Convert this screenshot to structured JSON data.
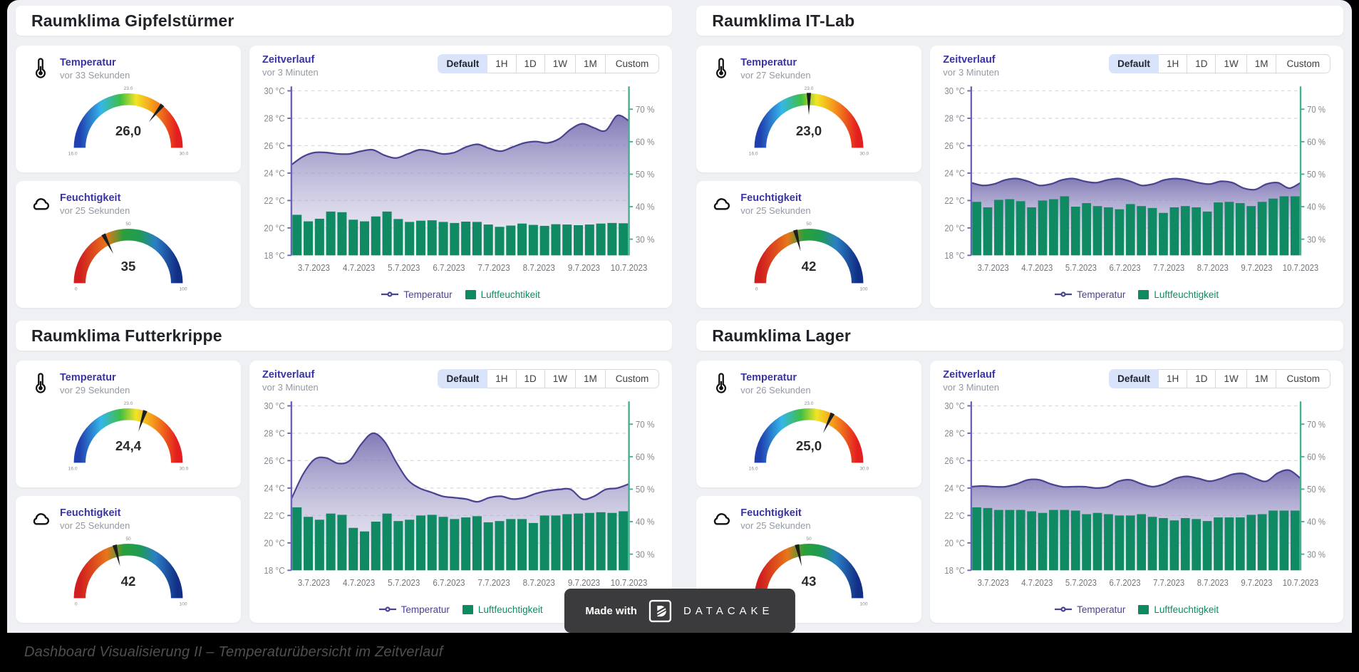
{
  "page": {
    "caption": "Dashboard Visualisierung II – Temperaturübersicht im Zeitverlauf",
    "badge": {
      "made_with": "Made with",
      "brand": "DATACAKE"
    }
  },
  "shared": {
    "range_buttons": [
      "Default",
      "1H",
      "1D",
      "1W",
      "1M",
      "Custom"
    ],
    "active_range": "Default",
    "x_labels": [
      "3.7.2023",
      "4.7.2023",
      "5.7.2023",
      "6.7.2023",
      "7.7.2023",
      "8.7.2023",
      "9.7.2023",
      "10.7.2023"
    ],
    "y_left_labels": [
      "30 °C",
      "28 °C",
      "26 °C",
      "24 °C",
      "22 °C",
      "20 °C",
      "18 °C"
    ],
    "y_right_labels": [
      "70 %",
      "60 %",
      "50 %",
      "40 %",
      "30 %"
    ],
    "temp_axis_range": [
      18,
      30
    ],
    "humidity_axis_range": [
      30,
      70
    ]
  },
  "colors": {
    "accent_purple": "#3a34a3",
    "line_purple": "#4a4391",
    "axis_purple": "#6a63b8",
    "bar_green": "#0f8a63",
    "axis_green": "#44b092",
    "grid_gray": "#d8d8dd",
    "axis_text": "#85898f",
    "active_button_bg": "#d9e3f9",
    "badge_bg": "#3b3b3d",
    "page_bg": "#eef0f3"
  },
  "panels": [
    {
      "title": "Raumklima Gipfelstürmer",
      "temperature": {
        "label": "Temperatur",
        "updated": "vor 33 Sekunden",
        "display": "26,0",
        "value": 26.0,
        "min": 16,
        "max": 30,
        "min_label": "16.0",
        "max_label": "30.0",
        "top_label": "23.0"
      },
      "humidity": {
        "label": "Feuchtigkeit",
        "updated": "vor 25 Sekunden",
        "display": "35",
        "value": 35,
        "min": 0,
        "max": 100,
        "min_label": "0",
        "max_label": "100",
        "top_label": "50"
      },
      "chart": {
        "title": "Zeitverlauf",
        "updated": "vor 3 Minuten",
        "type": "line+bar",
        "series": [
          {
            "name": "Temperatur",
            "type": "line",
            "unit": "°C",
            "values": [
              24.6,
              25.2,
              25.5,
              25.5,
              25.4,
              25.4,
              25.6,
              25.7,
              25.3,
              25.1,
              25.4,
              25.7,
              25.6,
              25.4,
              25.5,
              25.9,
              26.1,
              25.8,
              25.6,
              25.9,
              26.2,
              26.3,
              26.2,
              26.5,
              27.2,
              27.6,
              27.3,
              27.1,
              28.2,
              27.8
            ]
          },
          {
            "name": "Luftfeuchtikeit",
            "type": "bar",
            "unit": "%",
            "values": [
              37.5,
              35.5,
              36.3,
              38.5,
              38.3,
              36,
              35.5,
              37,
              38.5,
              36.2,
              35.3,
              35.7,
              35.8,
              35.3,
              35,
              35.4,
              35.3,
              34.5,
              33.8,
              34.2,
              34.8,
              34.4,
              34.1,
              34.6,
              34.5,
              34.3,
              34.5,
              34.8,
              35,
              34.9
            ]
          }
        ]
      }
    },
    {
      "title": "Raumklima IT-Lab",
      "temperature": {
        "label": "Temperatur",
        "updated": "vor 27 Sekunden",
        "display": "23,0",
        "value": 23.0,
        "min": 16,
        "max": 30,
        "min_label": "16.0",
        "max_label": "30.0",
        "top_label": "23.0"
      },
      "humidity": {
        "label": "Feuchtigkeit",
        "updated": "vor 25 Sekunden",
        "display": "42",
        "value": 42,
        "min": 0,
        "max": 100,
        "min_label": "0",
        "max_label": "100",
        "top_label": "50"
      },
      "chart": {
        "title": "Zeitverlauf",
        "updated": "vor 3 Minuten",
        "type": "line+bar",
        "series": [
          {
            "name": "Temperatur",
            "type": "line",
            "unit": "°C",
            "values": [
              23.3,
              23.1,
              23.2,
              23.5,
              23.6,
              23.4,
              23.1,
              23.2,
              23.5,
              23.6,
              23.4,
              23.3,
              23.5,
              23.6,
              23.4,
              23.1,
              23.2,
              23.5,
              23.6,
              23.5,
              23.3,
              23.2,
              23.4,
              23.3,
              22.9,
              22.8,
              23.2,
              23.3,
              22.9,
              23.3
            ]
          },
          {
            "name": "Luftfeuchtigkeit",
            "type": "bar",
            "unit": "%",
            "values": [
              41.5,
              39.8,
              42.1,
              42.3,
              41.7,
              39.8,
              41.9,
              42.3,
              43.2,
              40,
              41.1,
              40.2,
              39.8,
              39.2,
              40.8,
              40.2,
              39.6,
              38.1,
              39.8,
              40.2,
              39.8,
              38.5,
              41.3,
              41.5,
              41.1,
              40.2,
              41.5,
              42.5,
              43.2,
              43.2
            ]
          }
        ]
      }
    },
    {
      "title": "Raumklima Futterkrippe",
      "temperature": {
        "label": "Temperatur",
        "updated": "vor 29 Sekunden",
        "display": "24,4",
        "value": 24.4,
        "min": 16,
        "max": 30,
        "min_label": "16.0",
        "max_label": "30.0",
        "top_label": "23.0"
      },
      "humidity": {
        "label": "Feuchtigkeit",
        "updated": "vor 25 Sekunden",
        "display": "42",
        "value": 42,
        "min": 0,
        "max": 100,
        "min_label": "0",
        "max_label": "100",
        "top_label": "50"
      },
      "chart": {
        "title": "Zeitverlauf",
        "updated": "vor 3 Minuten",
        "type": "line+bar",
        "series": [
          {
            "name": "Temperatur",
            "type": "line",
            "unit": "°C",
            "values": [
              23.2,
              25,
              26.1,
              26.2,
              25.8,
              26,
              27.2,
              28,
              27.4,
              25.9,
              24.6,
              24,
              23.7,
              23.4,
              23.3,
              23.2,
              23,
              23.3,
              23.4,
              23.2,
              23.3,
              23.6,
              23.8,
              23.9,
              23.9,
              23.2,
              23.4,
              23.9,
              24,
              24.3
            ]
          },
          {
            "name": "Luftfeuchtigkeit",
            "type": "bar",
            "unit": "%",
            "values": [
              44.4,
              41.5,
              40.6,
              42.5,
              42.1,
              38.1,
              37,
              40,
              42.5,
              40.2,
              40.6,
              41.9,
              42.1,
              41.5,
              40.8,
              41.3,
              41.7,
              39.8,
              40.2,
              40.8,
              40.8,
              39.6,
              41.9,
              41.9,
              42.3,
              42.5,
              42.7,
              42.9,
              42.7,
              43.2
            ]
          }
        ]
      }
    },
    {
      "title": "Raumklima Lager",
      "temperature": {
        "label": "Temperatur",
        "updated": "vor 26 Sekunden",
        "display": "25,0",
        "value": 25.0,
        "min": 16,
        "max": 30,
        "min_label": "16.0",
        "max_label": "30.0",
        "top_label": "23.0"
      },
      "humidity": {
        "label": "Feuchtigkeit",
        "updated": "vor 25 Sekunden",
        "display": "43",
        "value": 43,
        "min": 0,
        "max": 100,
        "min_label": "0",
        "max_label": "100",
        "top_label": "50"
      },
      "chart": {
        "title": "Zeitverlauf",
        "updated": "vor 3 Minuten",
        "type": "line+bar",
        "series": [
          {
            "name": "Temperatur",
            "type": "line",
            "unit": "°C",
            "values": [
              24.1,
              24.15,
              24.1,
              24.1,
              24.3,
              24.6,
              24.6,
              24.3,
              24.1,
              24.1,
              24.1,
              24,
              24.1,
              24.5,
              24.6,
              24.3,
              24.1,
              24.3,
              24.7,
              24.85,
              24.7,
              24.5,
              24.7,
              25,
              25.05,
              24.7,
              24.5,
              25.1,
              25.3,
              24.7
            ]
          },
          {
            "name": "Luftfeuchtigkeit",
            "type": "bar",
            "unit": "%",
            "values": [
              44.4,
              44.2,
              43.6,
              43.6,
              43.6,
              43.2,
              42.7,
              43.6,
              43.6,
              43.4,
              42.3,
              42.7,
              42.3,
              41.9,
              41.9,
              42.3,
              41.5,
              41.1,
              40.4,
              41.1,
              40.8,
              40.2,
              41.3,
              41.3,
              41.3,
              42.1,
              42.3,
              43.4,
              43.4,
              43.4
            ]
          }
        ]
      }
    }
  ]
}
